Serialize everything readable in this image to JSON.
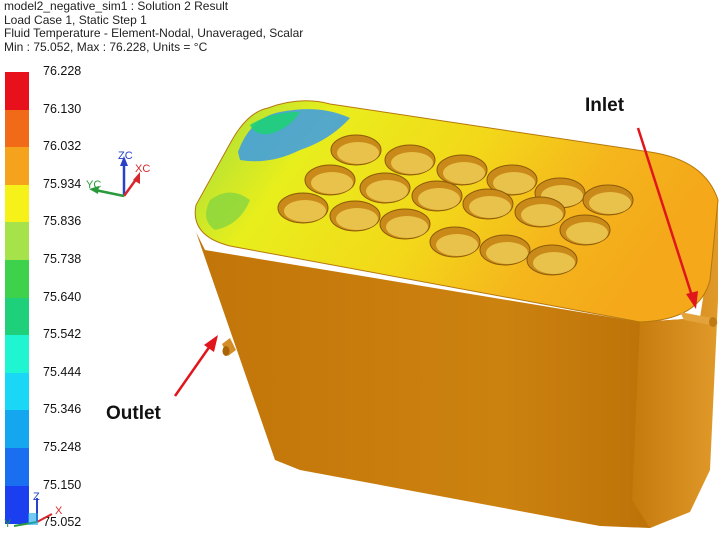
{
  "header": {
    "line1": "model2_negative_sim1 : Solution 2 Result",
    "line2": "Load Case 1, Static Step 1",
    "line3": "Fluid Temperature - Element-Nodal, Unaveraged, Scalar",
    "line4": "Min : 75.052, Max : 76.228, Units = °C"
  },
  "legend": {
    "ticks": [
      "76.228",
      "76.130",
      "76.032",
      "75.934",
      "75.836",
      "75.738",
      "75.640",
      "75.542",
      "75.444",
      "75.346",
      "75.248",
      "75.150",
      "75.052"
    ],
    "colors": [
      "#e8101a",
      "#f06a18",
      "#f5a21c",
      "#f7f11a",
      "#a6e24a",
      "#3dd14c",
      "#1fd07a",
      "#1ff5d0",
      "#1ad8f5",
      "#15a6f0",
      "#1a6ef0",
      "#1a3ef0",
      "#1412d8"
    ]
  },
  "triad": {
    "zc": "ZC",
    "xc": "XC",
    "yc": "YC"
  },
  "small_triad": {
    "z": "Z",
    "x": "X",
    "y": "Y"
  },
  "annotations": {
    "inlet": "Inlet",
    "outlet": "Outlet"
  },
  "colors": {
    "arrow": "#e0161c",
    "body": "#c87d0f",
    "body_dark": "#a86405"
  }
}
